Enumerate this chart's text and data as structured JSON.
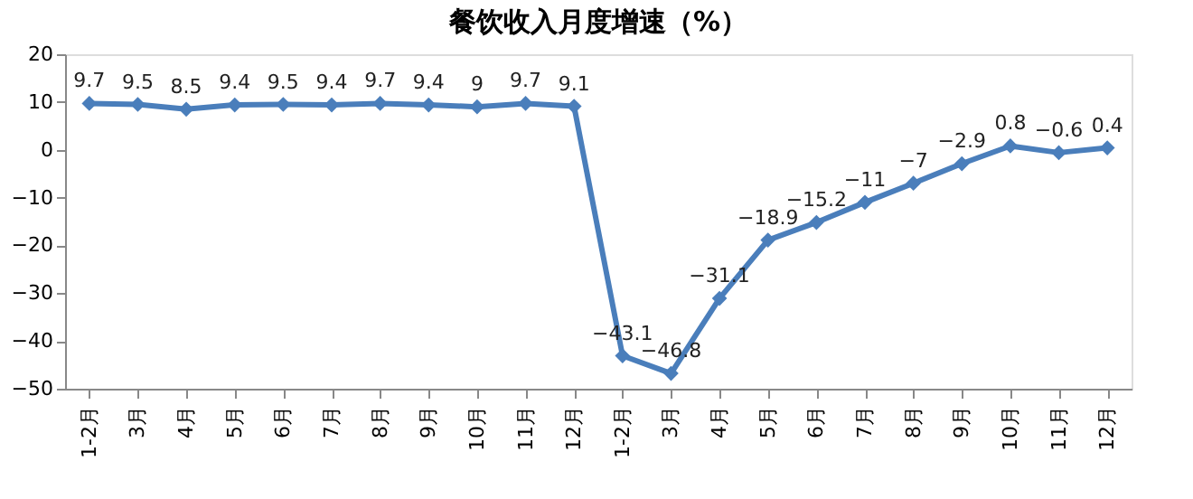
{
  "chart_data": {
    "type": "line",
    "title": "餐饮收入月度增速（%）",
    "categories": [
      "1-2月",
      "3月",
      "4月",
      "5月",
      "6月",
      "7月",
      "8月",
      "9月",
      "10月",
      "11月",
      "12月",
      "1-2月",
      "3月",
      "4月",
      "5月",
      "6月",
      "7月",
      "8月",
      "9月",
      "10月",
      "11月",
      "12月"
    ],
    "series": [
      {
        "color": "#4a7ebb",
        "values": [
          9.7,
          9.5,
          8.5,
          9.4,
          9.5,
          9.4,
          9.7,
          9.4,
          9,
          9.7,
          9.1,
          -43.1,
          -46.8,
          -31.1,
          -18.9,
          -15.2,
          -11,
          -7,
          -2.9,
          0.8,
          -0.6,
          0.4
        ]
      }
    ],
    "ylim": [
      -50,
      20
    ],
    "yticks": [
      -50,
      -40,
      -30,
      -20,
      -10,
      0,
      10,
      20
    ],
    "grid": false,
    "marker": "diamond",
    "line_style": "solid",
    "data_labels": true
  }
}
